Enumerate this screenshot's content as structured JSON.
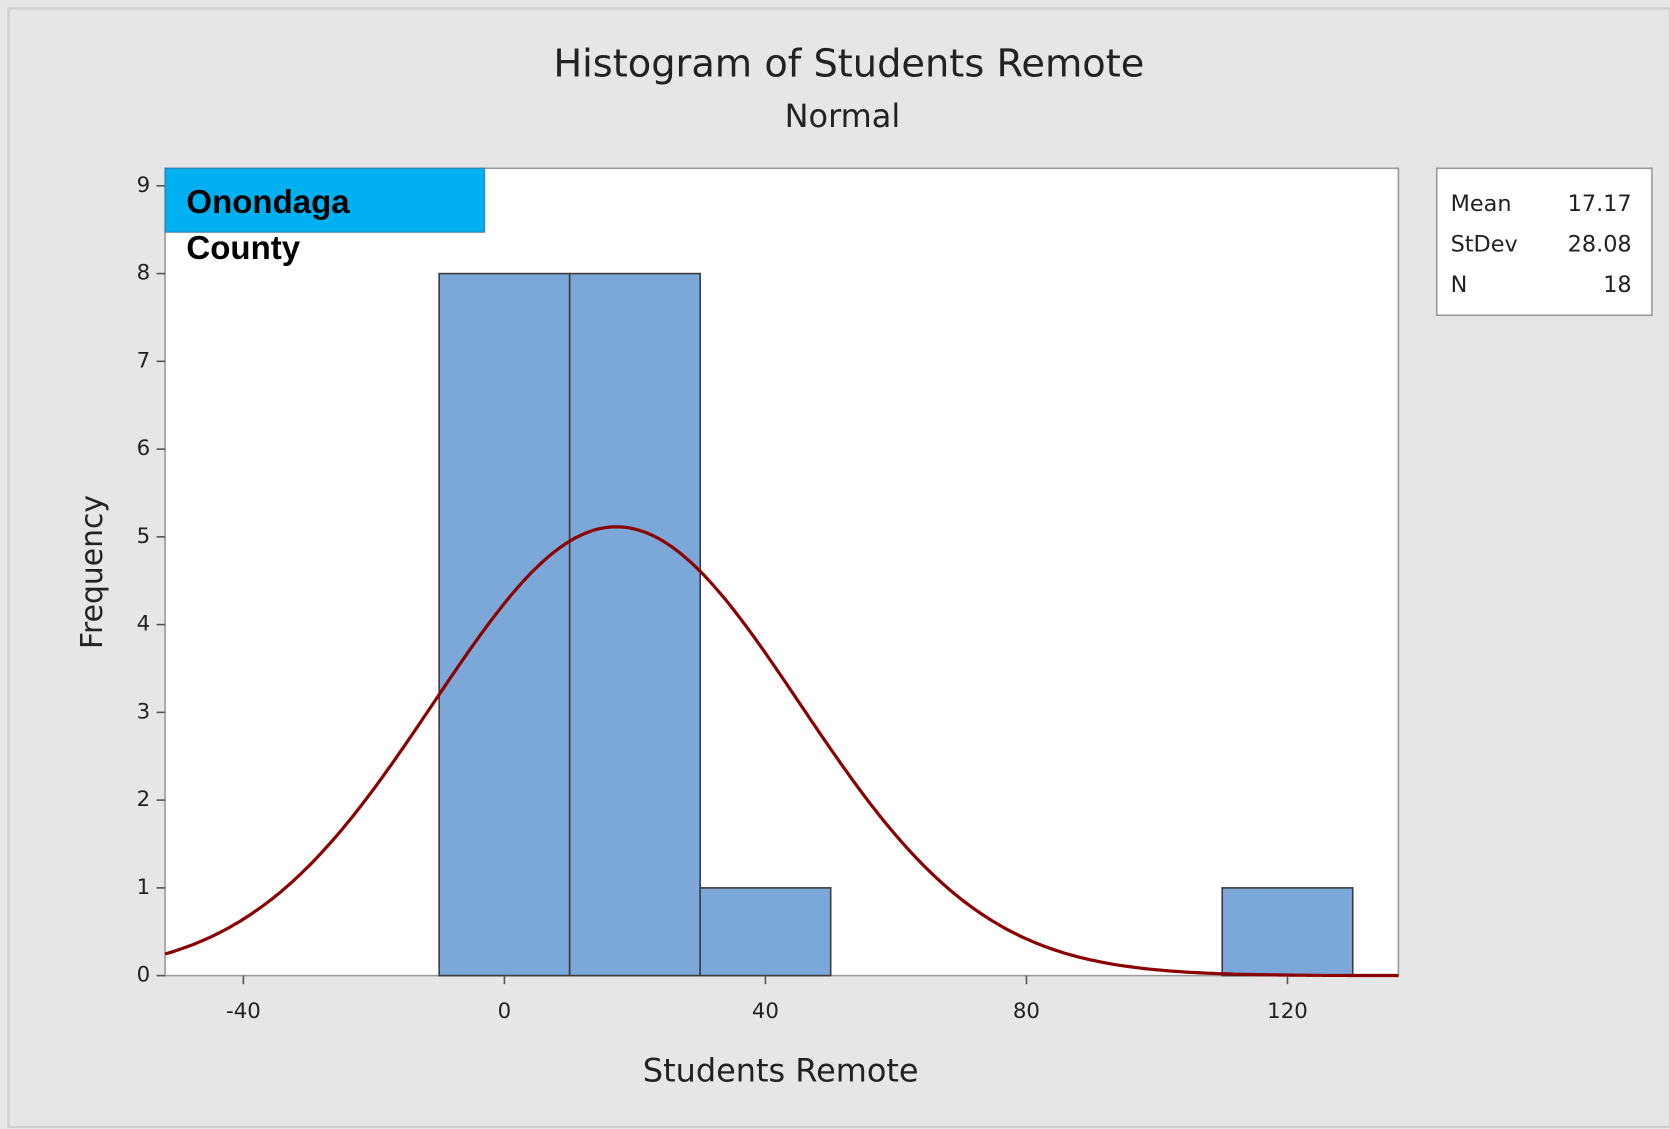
{
  "chart_data": {
    "type": "histogram",
    "title": "Histogram of Students Remote",
    "subtitle": "Normal",
    "x_label": "Students Remote",
    "y_label": "Frequency",
    "bins": [
      -10,
      10,
      30,
      50,
      70,
      90,
      110,
      130
    ],
    "values": [
      8,
      8,
      1,
      0,
      0,
      0,
      1
    ],
    "color": "#7ba7d9",
    "fit_color": "#8b0000",
    "xlim": [
      -52,
      137
    ],
    "ylim": [
      0,
      9.2
    ],
    "xticks": [
      -40,
      0,
      40,
      80,
      120
    ],
    "yticks": [
      0,
      1,
      2,
      3,
      4,
      5,
      6,
      7,
      8,
      9
    ],
    "annotation": "Onondaga County",
    "stats": [
      {
        "label": "Mean",
        "value": 17.17
      },
      {
        "label": "StDev",
        "value": 28.08
      },
      {
        "label": "N",
        "value": 18
      }
    ]
  }
}
